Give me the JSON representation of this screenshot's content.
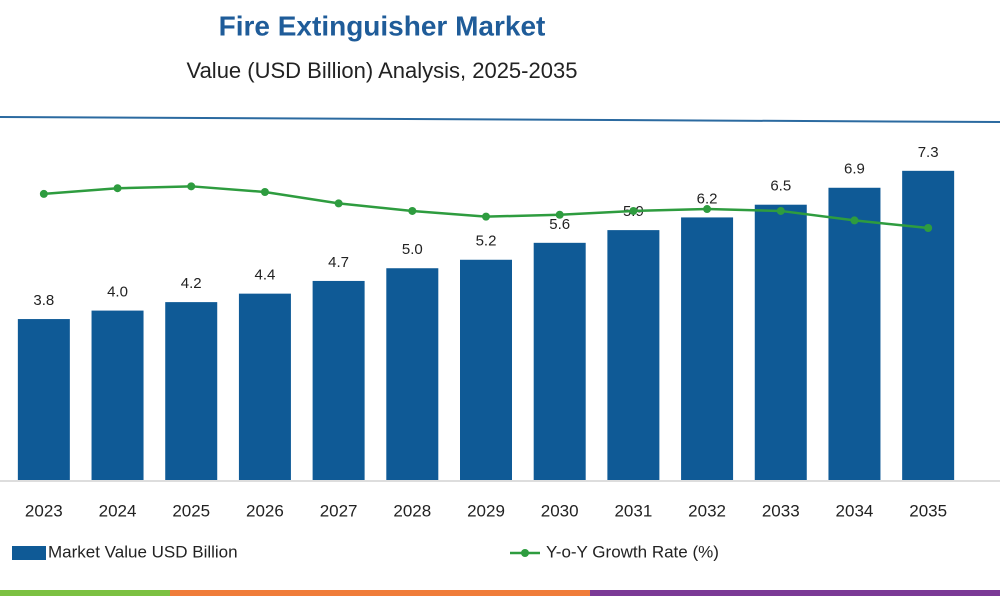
{
  "chart_data": {
    "type": "bar-line",
    "title": "Fire Extinguisher Market",
    "subtitle": "Value (USD Billion) Analysis, 2025-2035",
    "categories": [
      "2023",
      "2024",
      "2025",
      "2026",
      "2027",
      "2028",
      "2029",
      "2030",
      "2031",
      "2032",
      "2033",
      "2034",
      "2035"
    ],
    "ylim": [
      0,
      8.5
    ],
    "y2lim": [
      -9,
      10
    ],
    "series": [
      {
        "name": "Market Value USD Billion",
        "type": "bar",
        "color": "#0f5a96",
        "values": [
          3.8,
          4.0,
          4.2,
          4.4,
          4.7,
          5.0,
          5.2,
          5.6,
          5.9,
          6.2,
          6.5,
          6.9,
          7.3
        ],
        "value_labels": [
          "3.8",
          "4.0",
          "4.2",
          "4.4",
          "4.7",
          "5.0",
          "5.2",
          "5.6",
          "5.9",
          "6.2",
          "6.5",
          "6.9",
          "7.3"
        ]
      },
      {
        "name": "Y-o-Y Growth Rate (%)",
        "type": "line",
        "axis": "y2",
        "color": "#2e9c3f",
        "values": [
          6.1,
          6.4,
          6.5,
          6.2,
          5.6,
          5.2,
          4.9,
          5.0,
          5.2,
          5.3,
          5.2,
          4.7,
          4.3
        ]
      }
    ]
  }
}
